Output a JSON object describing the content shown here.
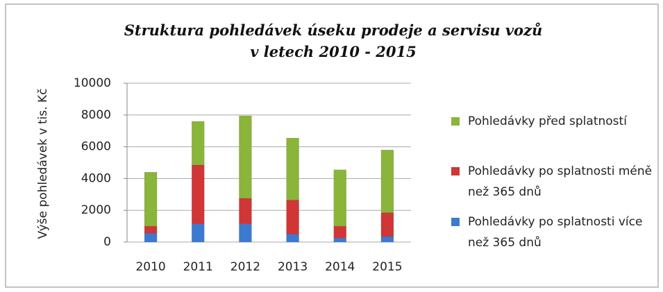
{
  "chart_data": {
    "type": "stacked_bar",
    "title": "Struktura pohledávek úseku prodeje a servisu vozů\nv letech  2010 - 2015",
    "y_label": "Výše pohledávek v tis. Kč",
    "categories": [
      "2010",
      "2011",
      "2012",
      "2013",
      "2014",
      "2015"
    ],
    "series": [
      {
        "name": "Pohledávky po splatnosti více než 365 dnů",
        "color": "#3c7ad0",
        "values": [
          550,
          1150,
          1150,
          500,
          250,
          350
        ]
      },
      {
        "name": "Pohledávky po splatnosti méně než 365 dnů",
        "color": "#d03636",
        "values": [
          450,
          3700,
          1600,
          2150,
          750,
          1500
        ]
      },
      {
        "name": "Pohledávky před splatností",
        "color": "#8ab43a",
        "values": [
          3400,
          2750,
          5200,
          3900,
          3550,
          3950
        ]
      }
    ],
    "ylim": [
      0,
      10000
    ],
    "yticks": [
      0,
      2000,
      4000,
      6000,
      8000,
      10000
    ],
    "grid": true,
    "legend": "right"
  }
}
